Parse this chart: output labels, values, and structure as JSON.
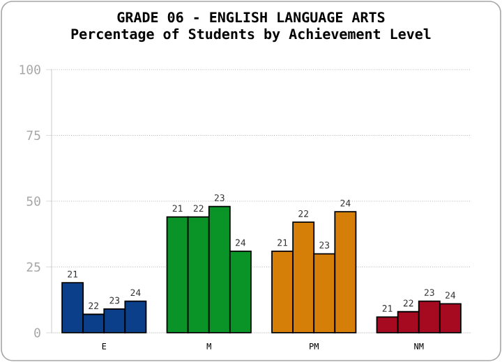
{
  "chart_data": {
    "type": "bar",
    "title": "GRADE 06 - ENGLISH LANGUAGE ARTS",
    "subtitle": "Percentage of Students by Achievement Level",
    "categories": [
      "E",
      "M",
      "PM",
      "NM"
    ],
    "series": [
      {
        "name": "21",
        "colors": [
          "#0b3f8a",
          "#0a9428",
          "#d67f08",
          "#a50a20"
        ],
        "values": [
          19,
          44,
          31,
          6
        ]
      },
      {
        "name": "22",
        "colors": [
          "#0b3f8a",
          "#0a9428",
          "#d67f08",
          "#a50a20"
        ],
        "values": [
          7,
          44,
          42,
          8
        ]
      },
      {
        "name": "23",
        "colors": [
          "#0b3f8a",
          "#0a9428",
          "#d67f08",
          "#a50a20"
        ],
        "values": [
          9,
          48,
          30,
          12
        ]
      },
      {
        "name": "24",
        "colors": [
          "#0b3f8a",
          "#0a9428",
          "#d67f08",
          "#a50a20"
        ],
        "values": [
          12,
          31,
          46,
          11
        ]
      }
    ],
    "ylim": [
      0,
      100
    ],
    "yticks": [
      0,
      25,
      50,
      75,
      100
    ],
    "grid": "y"
  }
}
